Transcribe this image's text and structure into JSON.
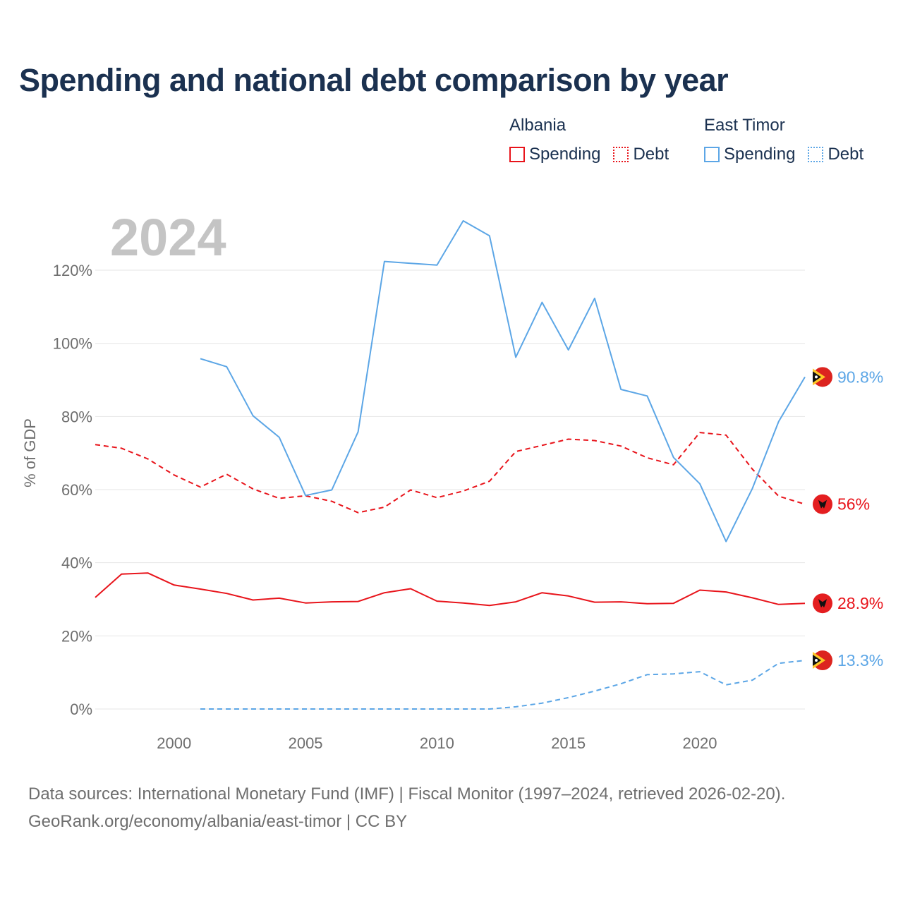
{
  "title": "Spending and national debt comparison by year",
  "legend": {
    "groups": [
      {
        "name": "Albania",
        "items": [
          {
            "label": "Spending",
            "style": "solid",
            "color": "#e8141b"
          },
          {
            "label": "Debt",
            "style": "dotted",
            "color": "#e8141b"
          }
        ]
      },
      {
        "name": "East Timor",
        "items": [
          {
            "label": "Spending",
            "style": "solid",
            "color": "#5ca6e6"
          },
          {
            "label": "Debt",
            "style": "dotted",
            "color": "#5ca6e6"
          }
        ]
      }
    ]
  },
  "sources": {
    "line1": "Data sources: International Monetary Fund (IMF) | Fiscal Monitor (1997–2024, retrieved 2026-02-20).",
    "line2": "GeoRank.org/economy/albania/east-timor | CC BY"
  },
  "chart_data": {
    "type": "line",
    "title": "Spending and national debt comparison by year",
    "year_label": "2024",
    "xlabel": "",
    "ylabel": "% of GDP",
    "xlim": [
      1997,
      2024
    ],
    "ylim": [
      0,
      130
    ],
    "xticks": [
      2000,
      2005,
      2010,
      2015,
      2020
    ],
    "yticks": [
      0,
      20,
      40,
      60,
      80,
      100,
      120
    ],
    "ytick_labels": [
      "0%",
      "20%",
      "40%",
      "60%",
      "80%",
      "100%",
      "120%"
    ],
    "grid": true,
    "series": [
      {
        "name": "Albania Spending",
        "country": "Albania",
        "metric": "Spending",
        "color": "#e8141b",
        "style": "solid",
        "end_label": "28.9%",
        "x": [
          1997,
          1998,
          1999,
          2000,
          2001,
          2002,
          2003,
          2004,
          2005,
          2006,
          2007,
          2008,
          2009,
          2010,
          2011,
          2012,
          2013,
          2014,
          2015,
          2016,
          2017,
          2018,
          2019,
          2020,
          2021,
          2022,
          2023,
          2024
        ],
        "values": [
          30.5,
          36.9,
          37.2,
          33.9,
          32.8,
          31.6,
          29.8,
          30.3,
          29.0,
          29.3,
          29.4,
          31.8,
          32.9,
          29.5,
          29.0,
          28.3,
          29.3,
          31.8,
          30.9,
          29.2,
          29.3,
          28.8,
          28.9,
          32.5,
          32.0,
          30.4,
          28.6,
          28.9
        ]
      },
      {
        "name": "Albania Debt",
        "country": "Albania",
        "metric": "Debt",
        "color": "#e8141b",
        "style": "dashed",
        "end_label": "56%",
        "x": [
          1997,
          1998,
          1999,
          2000,
          2001,
          2002,
          2003,
          2004,
          2005,
          2006,
          2007,
          2008,
          2009,
          2010,
          2011,
          2012,
          2013,
          2014,
          2015,
          2016,
          2017,
          2018,
          2019,
          2020,
          2021,
          2022,
          2023,
          2024
        ],
        "values": [
          72.3,
          71.3,
          68.4,
          64.0,
          60.7,
          64.2,
          60.2,
          57.6,
          58.3,
          56.8,
          53.7,
          55.2,
          59.9,
          57.8,
          59.6,
          62.3,
          70.4,
          72.1,
          73.8,
          73.4,
          71.9,
          68.7,
          66.8,
          75.6,
          74.9,
          65.6,
          58.2,
          56.0
        ]
      },
      {
        "name": "East Timor Spending",
        "country": "East Timor",
        "metric": "Spending",
        "color": "#5ca6e6",
        "style": "solid",
        "end_label": "90.8%",
        "x": [
          2001,
          2002,
          2003,
          2004,
          2005,
          2006,
          2007,
          2008,
          2009,
          2010,
          2011,
          2012,
          2013,
          2014,
          2015,
          2016,
          2017,
          2018,
          2019,
          2020,
          2021,
          2022,
          2023,
          2024
        ],
        "values": [
          95.8,
          93.6,
          80.2,
          74.3,
          58.4,
          59.9,
          75.8,
          122.4,
          121.9,
          121.4,
          133.5,
          129.4,
          96.2,
          111.2,
          98.2,
          112.3,
          87.4,
          85.6,
          68.8,
          61.6,
          45.8,
          60.3,
          78.6,
          90.8
        ]
      },
      {
        "name": "East Timor Debt",
        "country": "East Timor",
        "metric": "Debt",
        "color": "#5ca6e6",
        "style": "dashed",
        "end_label": "13.3%",
        "x": [
          2001,
          2002,
          2003,
          2004,
          2005,
          2006,
          2007,
          2008,
          2009,
          2010,
          2011,
          2012,
          2013,
          2014,
          2015,
          2016,
          2017,
          2018,
          2019,
          2020,
          2021,
          2022,
          2023,
          2024
        ],
        "values": [
          0,
          0,
          0,
          0,
          0,
          0,
          0,
          0,
          0,
          0,
          0,
          0,
          0.6,
          1.6,
          3.1,
          4.9,
          6.9,
          9.4,
          9.6,
          10.2,
          6.6,
          7.9,
          12.5,
          13.3
        ]
      }
    ]
  }
}
